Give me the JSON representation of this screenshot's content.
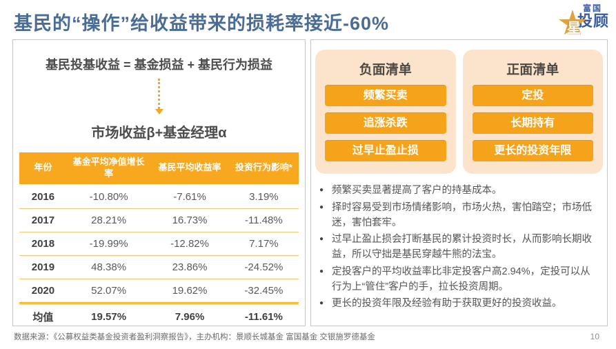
{
  "slide": {
    "title": "基民的“操作”给收益带来的损耗率接近-60%",
    "page_number": "10"
  },
  "logo": {
    "star_overlay": "星",
    "name_top": "富国",
    "name_bottom": "投顾"
  },
  "formula_panel": {
    "equation": "基民投基收益 = 基金损益 + 基民行为损益",
    "result": "市场收益β+基金经理α"
  },
  "table": {
    "headers": [
      "年份",
      "基金平均净值增长率",
      "基民平均收益率",
      "投资行为影响*"
    ],
    "rows": [
      {
        "year": "2016",
        "fund_avg_nav_growth": "-10.80%",
        "investor_avg_return": "-7.61%",
        "behavior_impact": "3.19%"
      },
      {
        "year": "2017",
        "fund_avg_nav_growth": "28.21%",
        "investor_avg_return": "16.73%",
        "behavior_impact": "-11.48%"
      },
      {
        "year": "2018",
        "fund_avg_nav_growth": "-19.99%",
        "investor_avg_return": "-12.82%",
        "behavior_impact": "7.17%"
      },
      {
        "year": "2019",
        "fund_avg_nav_growth": "48.38%",
        "investor_avg_return": "23.86%",
        "behavior_impact": "-24.52%"
      },
      {
        "year": "2020",
        "fund_avg_nav_growth": "52.07%",
        "investor_avg_return": "19.62%",
        "behavior_impact": "-32.45%"
      }
    ],
    "summary_row": {
      "year": "均值",
      "fund_avg_nav_growth": "19.57%",
      "investor_avg_return": "7.96%",
      "behavior_impact": "-11.61%"
    }
  },
  "negative_list": {
    "title": "负面清单",
    "items": [
      "频繁买卖",
      "追涨杀跌",
      "过早止盈止损"
    ]
  },
  "positive_list": {
    "title": "正面清单",
    "items": [
      "定投",
      "长期持有",
      "更长的投资年限"
    ]
  },
  "insights": [
    "频繁买卖显著提高了客户的持基成本。",
    "择时容易受到市场情绪影响，市场火热，害怕踏空；市场低迷，害怕套牢。",
    "过早止盈止损会打断基民的累计投资时长，从而影响长期收益，所以守拙是基民穿越牛熊的法宝。",
    "定投客户的平均收益率比非定投客户高2.94%，定投可以从行为上“管住”客户的手，拉长投资周期。",
    "更长的投资年限及经验有助于获取更好的投资收益。"
  ],
  "icons": {
    "bullet": "●"
  },
  "footer": {
    "source": "数据来源：《公募权益类基金投资者盈利洞察报告》，主办机构：景顺长城基金 富国基金 交银施罗德基金"
  },
  "colors": {
    "accent_orange": "#F5A31B",
    "header_orange": "#F7A81E",
    "panel_peach": "#FBE4CB",
    "title_blue": "#4A6D96",
    "row_divider": "#F3C878"
  }
}
